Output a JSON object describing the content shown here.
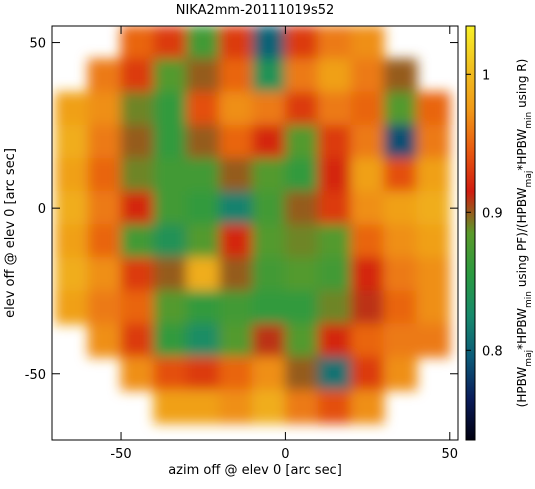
{
  "chart_data": {
    "type": "heatmap",
    "title": "NIKA2mm-20111019s52",
    "x_label": "azim off @ elev 0 [arc sec]",
    "y_label": "elev off @ elev 0 [arc sec]",
    "colorbar_label_parts": [
      "(HPBW",
      "maj",
      "*HPBW",
      "min",
      " using PF)/(HPBW",
      "maj",
      "*HPBW",
      "min",
      " using R)"
    ],
    "x": [
      -65,
      -55,
      -45,
      -35,
      -25,
      -15,
      -5,
      5,
      15,
      25,
      35,
      45
    ],
    "y": [
      50,
      40,
      30,
      20,
      10,
      0,
      -10,
      -20,
      -30,
      -40,
      -50,
      -60
    ],
    "values": [
      [
        null,
        null,
        0.95,
        0.93,
        0.87,
        0.93,
        0.8,
        0.93,
        0.96,
        0.97,
        null,
        null
      ],
      [
        null,
        0.96,
        0.93,
        0.88,
        0.9,
        0.95,
        0.84,
        0.96,
        0.98,
        0.96,
        0.9,
        null
      ],
      [
        0.98,
        0.97,
        0.89,
        0.86,
        0.94,
        0.97,
        0.96,
        0.93,
        0.96,
        0.95,
        0.88,
        0.95
      ],
      [
        0.99,
        0.96,
        0.9,
        0.86,
        0.9,
        0.95,
        0.92,
        0.88,
        0.93,
        0.96,
        0.79,
        0.96
      ],
      [
        0.98,
        0.95,
        0.89,
        0.87,
        0.87,
        0.9,
        0.88,
        0.86,
        0.92,
        0.98,
        0.94,
        0.98
      ],
      [
        0.99,
        0.96,
        0.92,
        0.87,
        0.86,
        0.82,
        0.87,
        0.9,
        0.93,
        0.97,
        0.98,
        0.99
      ],
      [
        0.98,
        0.95,
        0.87,
        0.84,
        0.88,
        0.92,
        0.88,
        0.89,
        0.88,
        0.95,
        0.97,
        0.98
      ],
      [
        0.99,
        0.97,
        0.93,
        0.9,
        0.99,
        0.9,
        0.87,
        0.88,
        0.87,
        0.92,
        0.96,
        0.97
      ],
      [
        0.98,
        0.96,
        0.95,
        0.88,
        0.86,
        0.87,
        0.86,
        0.86,
        0.89,
        0.91,
        0.95,
        0.97
      ],
      [
        null,
        0.97,
        0.93,
        0.86,
        0.83,
        0.88,
        0.91,
        0.88,
        0.92,
        0.95,
        0.96,
        0.96
      ],
      [
        null,
        null,
        0.97,
        0.94,
        0.93,
        0.95,
        0.97,
        0.9,
        0.81,
        0.93,
        0.97,
        null
      ],
      [
        null,
        null,
        null,
        0.98,
        0.98,
        0.97,
        0.99,
        0.96,
        0.94,
        0.97,
        null,
        null
      ]
    ],
    "cell_size": 10,
    "xlim": [
      -71,
      52.5
    ],
    "ylim": [
      -70,
      55
    ],
    "xticks": [
      -50,
      0,
      50
    ],
    "yticks": [
      -50,
      0,
      50
    ],
    "clim": [
      0.735,
      1.035
    ],
    "cticks": [
      0.8,
      0.9,
      1
    ],
    "colorscale": [
      "#000010",
      "#0a1c5a",
      "#0c5a78",
      "#178a6c",
      "#2a9a40",
      "#5a9a2a",
      "#d01c10",
      "#e85a10",
      "#f09a18",
      "#f0c020",
      "#f8f028"
    ]
  }
}
